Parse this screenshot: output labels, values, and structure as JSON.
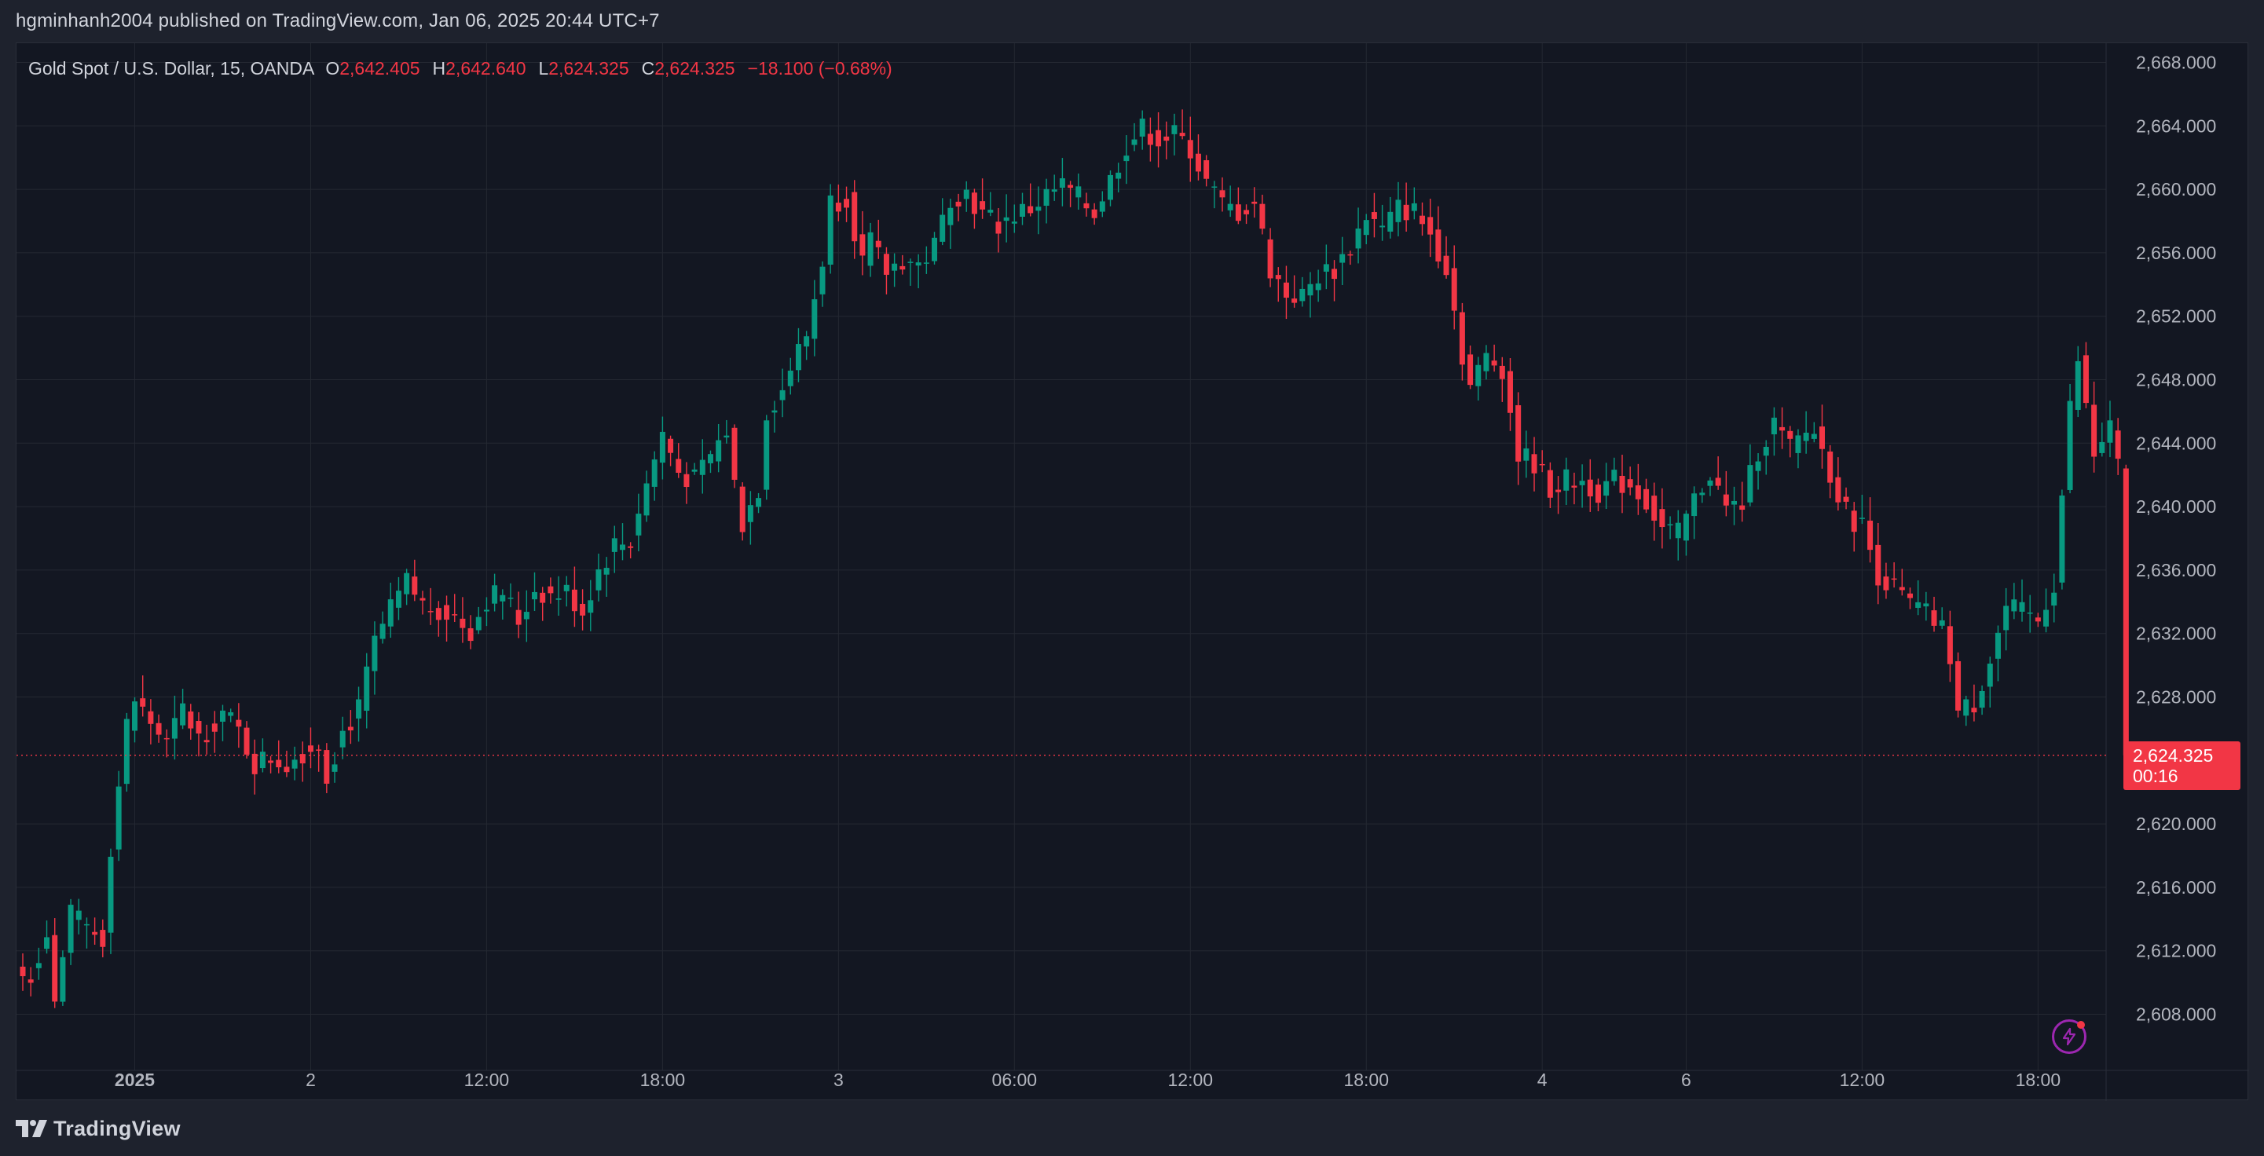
{
  "header": {
    "publisher_line": "hgminhanh2004 published on TradingView.com, Jan 06, 2025 20:44 UTC+7"
  },
  "legend": {
    "symbol": "Gold Spot / U.S. Dollar, 15, OANDA",
    "open_key": "O",
    "open": "2,642.405",
    "high_key": "H",
    "high": "2,642.640",
    "low_key": "L",
    "low": "2,624.325",
    "close_key": "C",
    "close": "2,624.325",
    "change": "−18.100 (−0.68%)"
  },
  "price_tag": {
    "price": "2,624.325",
    "countdown": "00:16"
  },
  "footer": {
    "brand": "TradingView"
  },
  "icons": {
    "alert": "lightning-bolt-icon",
    "brand": "tradingview-logo-icon"
  },
  "colors": {
    "up": "#089981",
    "down": "#f23645",
    "background": "#131722",
    "grid": "#242832",
    "axis_text": "#b2b5be",
    "current_price_line": "#f23645"
  },
  "chart_data": {
    "type": "candlestick",
    "title": "",
    "ylim": [
      2604.0,
      2670.0
    ],
    "y_ticks": [
      "2,668.000",
      "2,664.000",
      "2,660.000",
      "2,656.000",
      "2,652.000",
      "2,648.000",
      "2,644.000",
      "2,640.000",
      "2,636.000",
      "2,632.000",
      "2,628.000",
      "2,620.000",
      "2,616.000",
      "2,612.000",
      "2,608.000"
    ],
    "x_ticks": [
      {
        "label": "2025",
        "bold": true,
        "bar": 14
      },
      {
        "label": "2",
        "bar": 36
      },
      {
        "label": "12:00",
        "bar": 58
      },
      {
        "label": "18:00",
        "bar": 80
      },
      {
        "label": "3",
        "bar": 102
      },
      {
        "label": "06:00",
        "bar": 124
      },
      {
        "label": "12:00",
        "bar": 146
      },
      {
        "label": "18:00",
        "bar": 168
      },
      {
        "label": "4",
        "bar": 190
      },
      {
        "label": "6",
        "bar": 208
      },
      {
        "label": "12:00",
        "bar": 230
      },
      {
        "label": "18:00",
        "bar": 252
      }
    ],
    "last_price": 2624.325,
    "close_path": [
      [
        0,
        2610.4
      ],
      [
        1,
        2610.6
      ],
      [
        3,
        2613.2
      ],
      [
        4,
        2608.8
      ],
      [
        6,
        2614.2
      ],
      [
        8,
        2613.4
      ],
      [
        10,
        2612.8
      ],
      [
        11,
        2618.6
      ],
      [
        13,
        2626.2
      ],
      [
        14,
        2627.8
      ],
      [
        16,
        2626.4
      ],
      [
        18,
        2625.0
      ],
      [
        20,
        2627.2
      ],
      [
        22,
        2625.4
      ],
      [
        25,
        2627.0
      ],
      [
        27,
        2625.8
      ],
      [
        29,
        2623.8
      ],
      [
        31,
        2624.2
      ],
      [
        33,
        2623.8
      ],
      [
        35,
        2624.6
      ],
      [
        37,
        2625.0
      ],
      [
        38,
        2623.2
      ],
      [
        40,
        2625.8
      ],
      [
        42,
        2627.2
      ],
      [
        44,
        2631.4
      ],
      [
        46,
        2633.4
      ],
      [
        48,
        2635.2
      ],
      [
        50,
        2633.8
      ],
      [
        52,
        2633.6
      ],
      [
        54,
        2633.0
      ],
      [
        56,
        2632.2
      ],
      [
        58,
        2634.2
      ],
      [
        60,
        2634.6
      ],
      [
        62,
        2632.8
      ],
      [
        64,
        2634.8
      ],
      [
        66,
        2634.4
      ],
      [
        68,
        2634.6
      ],
      [
        70,
        2633.4
      ],
      [
        72,
        2636.0
      ],
      [
        74,
        2637.6
      ],
      [
        76,
        2637.8
      ],
      [
        77,
        2639.8
      ],
      [
        78,
        2641.4
      ],
      [
        80,
        2644.6
      ],
      [
        82,
        2642.2
      ],
      [
        84,
        2641.6
      ],
      [
        86,
        2643.2
      ],
      [
        88,
        2644.8
      ],
      [
        89,
        2641.4
      ],
      [
        90,
        2639.0
      ],
      [
        92,
        2641.2
      ],
      [
        93,
        2646.0
      ],
      [
        95,
        2647.4
      ],
      [
        96,
        2648.8
      ],
      [
        98,
        2650.8
      ],
      [
        100,
        2655.6
      ],
      [
        101,
        2659.2
      ],
      [
        103,
        2659.6
      ],
      [
        105,
        2655.4
      ],
      [
        106,
        2656.6
      ],
      [
        108,
        2654.8
      ],
      [
        110,
        2655.6
      ],
      [
        112,
        2655.2
      ],
      [
        114,
        2656.4
      ],
      [
        116,
        2659.6
      ],
      [
        118,
        2659.8
      ],
      [
        120,
        2658.4
      ],
      [
        122,
        2657.8
      ],
      [
        124,
        2658.4
      ],
      [
        126,
        2658.8
      ],
      [
        128,
        2659.6
      ],
      [
        130,
        2660.2
      ],
      [
        132,
        2659.4
      ],
      [
        134,
        2658.6
      ],
      [
        136,
        2660.6
      ],
      [
        138,
        2662.8
      ],
      [
        140,
        2663.8
      ],
      [
        142,
        2663.2
      ],
      [
        144,
        2663.4
      ],
      [
        146,
        2662.6
      ],
      [
        148,
        2660.4
      ],
      [
        150,
        2659.0
      ],
      [
        152,
        2658.6
      ],
      [
        154,
        2659.2
      ],
      [
        156,
        2655.0
      ],
      [
        158,
        2653.4
      ],
      [
        160,
        2653.2
      ],
      [
        162,
        2654.6
      ],
      [
        164,
        2655.0
      ],
      [
        166,
        2656.4
      ],
      [
        168,
        2658.4
      ],
      [
        170,
        2657.4
      ],
      [
        172,
        2658.8
      ],
      [
        174,
        2658.6
      ],
      [
        176,
        2657.2
      ],
      [
        178,
        2655.2
      ],
      [
        180,
        2649.6
      ],
      [
        181,
        2647.6
      ],
      [
        183,
        2649.4
      ],
      [
        185,
        2648.8
      ],
      [
        187,
        2643.2
      ],
      [
        189,
        2642.8
      ],
      [
        191,
        2641.2
      ],
      [
        193,
        2641.6
      ],
      [
        195,
        2641.6
      ],
      [
        197,
        2641.0
      ],
      [
        199,
        2641.6
      ],
      [
        201,
        2641.4
      ],
      [
        203,
        2640.4
      ],
      [
        205,
        2638.6
      ],
      [
        207,
        2638.2
      ],
      [
        209,
        2640.4
      ],
      [
        211,
        2642.2
      ],
      [
        213,
        2639.8
      ],
      [
        215,
        2640.2
      ],
      [
        217,
        2643.6
      ],
      [
        219,
        2645.2
      ],
      [
        221,
        2643.6
      ],
      [
        223,
        2644.6
      ],
      [
        224,
        2644.8
      ],
      [
        226,
        2642.2
      ],
      [
        228,
        2639.6
      ],
      [
        230,
        2638.8
      ],
      [
        232,
        2635.8
      ],
      [
        234,
        2634.8
      ],
      [
        236,
        2633.8
      ],
      [
        238,
        2633.2
      ],
      [
        240,
        2632.2
      ],
      [
        241,
        2630.6
      ],
      [
        242,
        2627.0
      ],
      [
        244,
        2627.6
      ],
      [
        246,
        2630.4
      ],
      [
        248,
        2633.6
      ],
      [
        250,
        2633.2
      ],
      [
        252,
        2632.8
      ],
      [
        254,
        2635.2
      ],
      [
        256,
        2646.2
      ],
      [
        257,
        2649.2
      ],
      [
        259,
        2643.2
      ],
      [
        261,
        2645.0
      ],
      [
        262,
        2642.4
      ],
      [
        263,
        2624.3
      ]
    ]
  }
}
